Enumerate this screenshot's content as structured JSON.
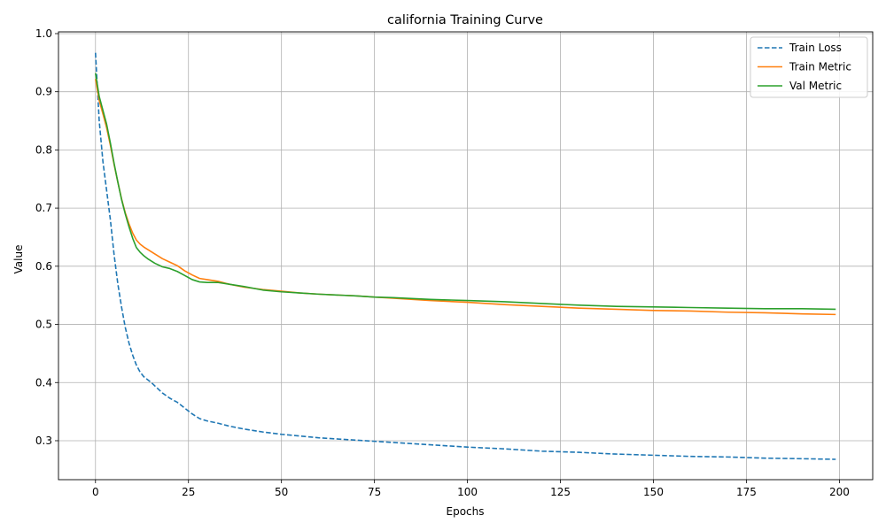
{
  "chart_data": {
    "type": "line",
    "title": "california Training Curve",
    "xlabel": "Epochs",
    "ylabel": "Value",
    "xlim": [
      -9.95,
      208.95
    ],
    "ylim": [
      0.233,
      1.003
    ],
    "xticks": [
      0,
      25,
      50,
      75,
      100,
      125,
      150,
      175,
      200
    ],
    "yticks": [
      0.3,
      0.4,
      0.5,
      0.6,
      0.7,
      0.8,
      0.9,
      1.0
    ],
    "ytick_labels": [
      "0.3",
      "0.4",
      "0.5",
      "0.6",
      "0.7",
      "0.8",
      "0.9",
      "1.0"
    ],
    "grid": true,
    "legend_position": "upper right",
    "series": [
      {
        "name": "Train Loss",
        "color": "#1f77b4",
        "dash": "dashed",
        "x": [
          0,
          1,
          2,
          3,
          4,
          5,
          6,
          7,
          8,
          9,
          10,
          11,
          12,
          13,
          14,
          15,
          16,
          18,
          20,
          22,
          24,
          26,
          28,
          30,
          33,
          36,
          40,
          45,
          50,
          55,
          60,
          70,
          75,
          80,
          90,
          100,
          110,
          120,
          125,
          130,
          140,
          150,
          160,
          170,
          180,
          190,
          199
        ],
        "y": [
          0.967,
          0.85,
          0.78,
          0.73,
          0.68,
          0.62,
          0.57,
          0.53,
          0.495,
          0.468,
          0.447,
          0.43,
          0.418,
          0.41,
          0.405,
          0.4,
          0.394,
          0.382,
          0.373,
          0.366,
          0.356,
          0.346,
          0.338,
          0.334,
          0.33,
          0.325,
          0.32,
          0.315,
          0.311,
          0.308,
          0.305,
          0.301,
          0.299,
          0.297,
          0.293,
          0.289,
          0.286,
          0.282,
          0.281,
          0.28,
          0.277,
          0.275,
          0.273,
          0.272,
          0.27,
          0.269,
          0.268
        ]
      },
      {
        "name": "Train Metric",
        "color": "#ff7f0e",
        "dash": "solid",
        "x": [
          0,
          1,
          2,
          3,
          4,
          5,
          6,
          7,
          8,
          9,
          10,
          11,
          12,
          13,
          14,
          16,
          18,
          20,
          22,
          24,
          26,
          28,
          30,
          33,
          36,
          40,
          45,
          50,
          55,
          60,
          70,
          75,
          80,
          90,
          100,
          110,
          120,
          130,
          140,
          150,
          160,
          170,
          180,
          190,
          199
        ],
        "y": [
          0.922,
          0.885,
          0.862,
          0.838,
          0.808,
          0.775,
          0.745,
          0.716,
          0.692,
          0.673,
          0.657,
          0.645,
          0.638,
          0.633,
          0.629,
          0.621,
          0.613,
          0.607,
          0.601,
          0.592,
          0.585,
          0.579,
          0.577,
          0.574,
          0.569,
          0.564,
          0.56,
          0.557,
          0.554,
          0.552,
          0.549,
          0.547,
          0.545,
          0.541,
          0.538,
          0.534,
          0.531,
          0.528,
          0.526,
          0.524,
          0.523,
          0.521,
          0.52,
          0.518,
          0.517
        ]
      },
      {
        "name": "Val Metric",
        "color": "#2ca02c",
        "dash": "solid",
        "x": [
          0,
          1,
          2,
          3,
          4,
          5,
          6,
          7,
          8,
          9,
          10,
          11,
          12,
          13,
          14,
          16,
          18,
          20,
          22,
          24,
          26,
          28,
          30,
          33,
          36,
          40,
          45,
          50,
          55,
          60,
          70,
          75,
          80,
          90,
          100,
          110,
          120,
          130,
          140,
          150,
          160,
          170,
          180,
          190,
          199
        ],
        "y": [
          0.932,
          0.892,
          0.868,
          0.844,
          0.812,
          0.777,
          0.745,
          0.715,
          0.69,
          0.668,
          0.648,
          0.632,
          0.624,
          0.618,
          0.613,
          0.605,
          0.599,
          0.596,
          0.591,
          0.584,
          0.577,
          0.573,
          0.572,
          0.572,
          0.569,
          0.565,
          0.559,
          0.556,
          0.554,
          0.552,
          0.549,
          0.547,
          0.546,
          0.543,
          0.541,
          0.539,
          0.536,
          0.533,
          0.531,
          0.53,
          0.529,
          0.528,
          0.527,
          0.527,
          0.526
        ]
      }
    ]
  }
}
